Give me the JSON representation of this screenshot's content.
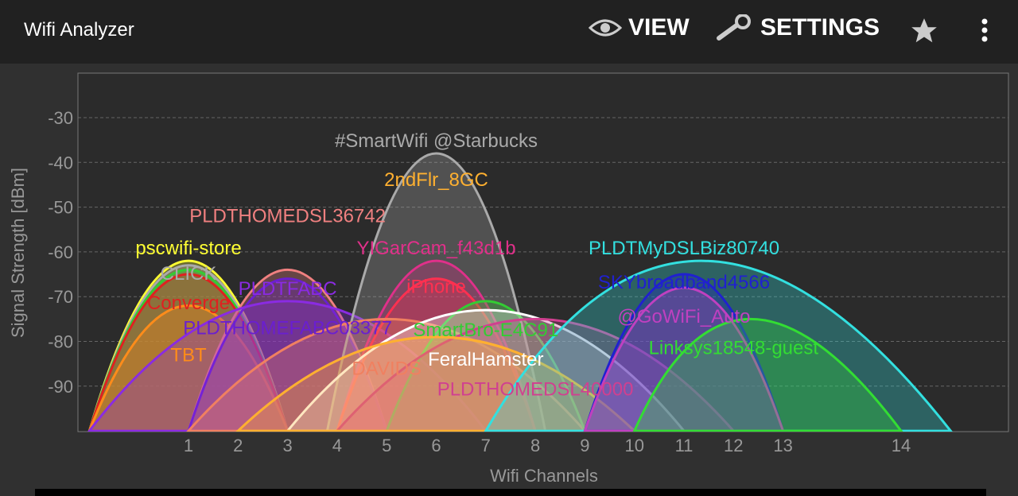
{
  "app": {
    "title": "Wifi Analyzer"
  },
  "toolbar": {
    "view_label": "VIEW",
    "settings_label": "SETTINGS",
    "icons": [
      "eye-icon",
      "wrench-icon",
      "star-icon",
      "more-vert-icon"
    ]
  },
  "chart_data": {
    "type": "area",
    "xlabel": "Wifi Channels",
    "ylabel": "Signal Strength [dBm]",
    "ylim": [
      -100,
      -20
    ],
    "yticks": [
      -30,
      -40,
      -50,
      -60,
      -70,
      -80,
      -90
    ],
    "xticks": [
      "1",
      "2",
      "3",
      "4",
      "5",
      "6",
      "7",
      "8",
      "9",
      "10",
      "11",
      "12",
      "13",
      "14"
    ],
    "grid": true,
    "networks": [
      {
        "ssid": "pscwifi-store",
        "channel": 1,
        "dbm": -62,
        "color": "#ffff33",
        "width": 2
      },
      {
        "ssid": "CLICK",
        "channel": 1,
        "dbm": -63,
        "color": "#aaaaaa",
        "width": 2
      },
      {
        "ssid": "",
        "channel": 1,
        "dbm": -64,
        "color": "#33cc33",
        "width": 2
      },
      {
        "ssid": "Converge",
        "channel": 1,
        "dbm": -65,
        "color": "#e02020",
        "width": 2
      },
      {
        "ssid": "TBT",
        "channel": 1,
        "dbm": -72,
        "color": "#ff8c1a",
        "width": 2
      },
      {
        "ssid": "PLDTHOMEDSL36742",
        "channel": 3,
        "dbm": -64,
        "color": "#f08080",
        "width": 2
      },
      {
        "ssid": "PLDTHOMEFABC03377",
        "channel": 3,
        "dbm": -66,
        "color": "#6a1fd0",
        "width": 2
      },
      {
        "ssid": "PLDTFABC",
        "channel": 3,
        "dbm": -71,
        "color": "#8a2be2",
        "width": 4
      },
      {
        "ssid": "#SmartWifi @Starbucks",
        "channel": 6,
        "dbm": -38,
        "color": "#aaaaaa",
        "width": 2.2
      },
      {
        "ssid": "YIGarCam_f43d1b",
        "channel": 6,
        "dbm": -62,
        "color": "#e0308a",
        "width": 2
      },
      {
        "ssid": "iPhone",
        "channel": 6,
        "dbm": -66,
        "color": "#ff3050",
        "width": 2
      },
      {
        "ssid": "DAVIDS",
        "channel": 5,
        "dbm": -75,
        "color": "#f08060",
        "width": 4
      },
      {
        "ssid": "SmartBro-E4C91",
        "channel": 7,
        "dbm": -71,
        "color": "#33cc33",
        "width": 2
      },
      {
        "ssid": "FeralHamster",
        "channel": 7,
        "dbm": -73,
        "color": "#ffffff",
        "width": 4
      },
      {
        "ssid": "PLDTHOMEDSL40000",
        "channel": 8,
        "dbm": -75,
        "color": "#d04090",
        "width": 4
      },
      {
        "ssid": "2ndFlr_8GC",
        "channel": 6,
        "dbm": -79,
        "color": "#ffb030",
        "width": 4
      },
      {
        "ssid": "PLDTMyDSLBiz80740",
        "channel": 11,
        "dbm": -62,
        "color": "#33e0e0",
        "width": 4
      },
      {
        "ssid": "SKYbroadband4566",
        "channel": 11,
        "dbm": -65,
        "color": "#2020d0",
        "width": 2
      },
      {
        "ssid": "@GoWiFi_Auto",
        "channel": 11,
        "dbm": -68,
        "color": "#c040c0",
        "width": 2
      },
      {
        "ssid": "Linksys18548-guest",
        "channel": 12,
        "dbm": -75,
        "color": "#33dd33",
        "width": 2
      }
    ]
  }
}
